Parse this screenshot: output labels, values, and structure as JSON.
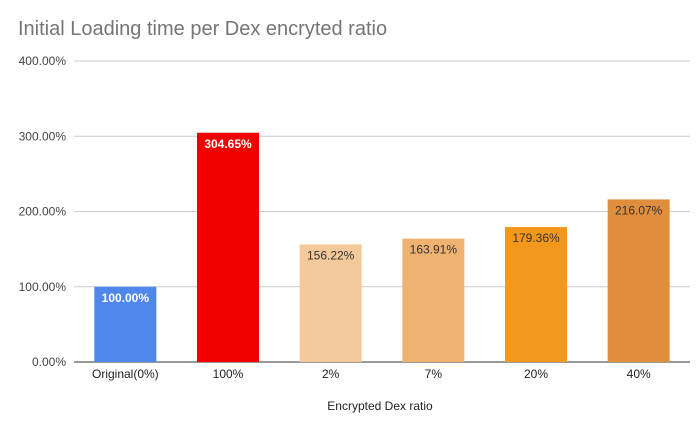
{
  "chart_data": {
    "type": "bar",
    "title": "Initial Loading time per Dex encryted ratio",
    "xlabel": "Encrypted Dex ratio",
    "ylabel": "",
    "ylim": [
      0,
      400
    ],
    "yticks": [
      "0.00%",
      "100.00%",
      "200.00%",
      "300.00%",
      "400.00%"
    ],
    "grid": true,
    "categories": [
      "Original(0%)",
      "100%",
      "2%",
      "7%",
      "20%",
      "40%"
    ],
    "values": [
      100.0,
      304.65,
      156.22,
      163.91,
      179.36,
      216.07
    ],
    "data_labels": [
      "100.00%",
      "304.65%",
      "156.22%",
      "163.91%",
      "179.36%",
      "216.07%"
    ],
    "bar_colors": [
      "#4f87ec",
      "#f20000",
      "#f4ca9c",
      "#f0b270",
      "#f4981c",
      "#df8e3e"
    ],
    "label_colors": [
      "#ffffff",
      "#ffffff",
      "#333333",
      "#333333",
      "#333333",
      "#333333"
    ]
  }
}
